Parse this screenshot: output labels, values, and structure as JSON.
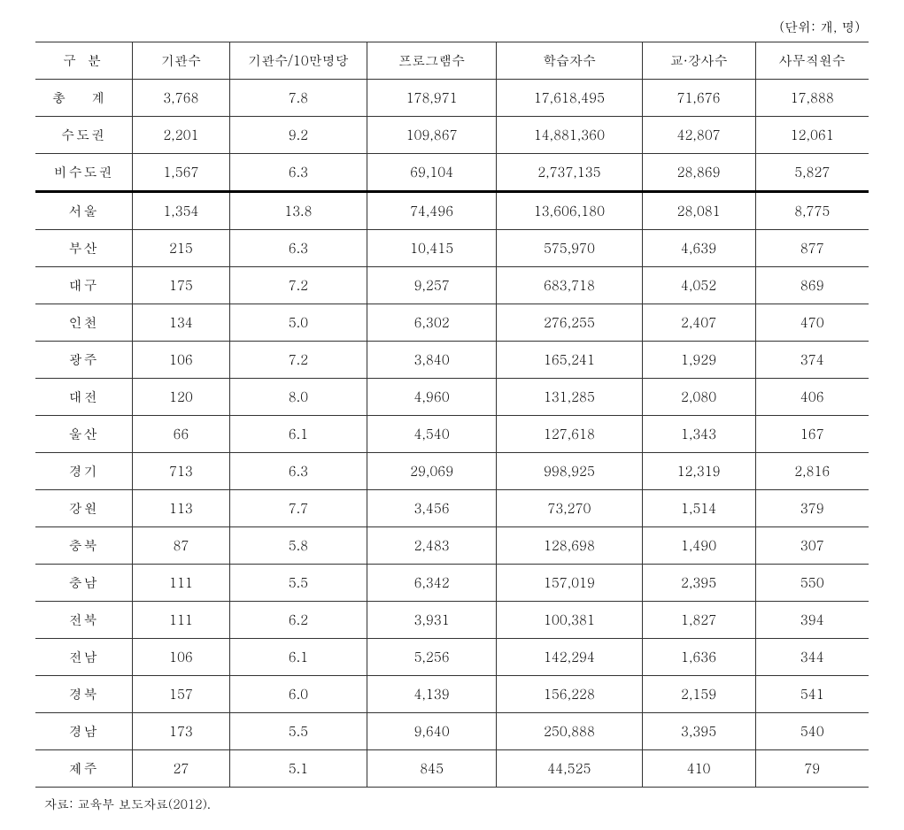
{
  "unit_label": "(단위: 개, 명)",
  "table": {
    "columns": [
      "구  분",
      "기관수",
      "기관수/10만명당",
      "프로그램수",
      "학습자수",
      "교·강사수",
      "사무직원수"
    ],
    "summary_rows": [
      {
        "label": "총  계",
        "wide": true,
        "values": [
          "3,768",
          "7.8",
          "178,971",
          "17,618,495",
          "71,676",
          "17,888"
        ]
      },
      {
        "label": "수도권",
        "wide": false,
        "values": [
          "2,201",
          "9.2",
          "109,867",
          "14,881,360",
          "42,807",
          "12,061"
        ]
      },
      {
        "label": "비수도권",
        "wide": false,
        "values": [
          "1,567",
          "6.3",
          "69,104",
          "2,737,135",
          "28,869",
          "5,827"
        ]
      }
    ],
    "region_rows": [
      {
        "label": "서울",
        "values": [
          "1,354",
          "13.8",
          "74,496",
          "13,606,180",
          "28,081",
          "8,775"
        ]
      },
      {
        "label": "부산",
        "values": [
          "215",
          "6.3",
          "10,415",
          "575,970",
          "4,639",
          "877"
        ]
      },
      {
        "label": "대구",
        "values": [
          "175",
          "7.2",
          "9,257",
          "683,718",
          "4,052",
          "869"
        ]
      },
      {
        "label": "인천",
        "values": [
          "134",
          "5.0",
          "6,302",
          "276,255",
          "2,407",
          "470"
        ]
      },
      {
        "label": "광주",
        "values": [
          "106",
          "7.2",
          "3,840",
          "165,241",
          "1,929",
          "374"
        ]
      },
      {
        "label": "대전",
        "values": [
          "120",
          "8.0",
          "4,960",
          "131,285",
          "2,080",
          "406"
        ]
      },
      {
        "label": "울산",
        "values": [
          "66",
          "6.1",
          "4,540",
          "127,618",
          "1,343",
          "167"
        ]
      },
      {
        "label": "경기",
        "values": [
          "713",
          "6.3",
          "29,069",
          "998,925",
          "12,319",
          "2,816"
        ]
      },
      {
        "label": "강원",
        "values": [
          "113",
          "7.7",
          "3,456",
          "73,270",
          "1,514",
          "379"
        ]
      },
      {
        "label": "충북",
        "values": [
          "87",
          "5.8",
          "2,483",
          "128,698",
          "1,490",
          "307"
        ]
      },
      {
        "label": "충남",
        "values": [
          "111",
          "5.5",
          "6,342",
          "157,019",
          "2,395",
          "550"
        ]
      },
      {
        "label": "전북",
        "values": [
          "111",
          "6.2",
          "3,931",
          "100,381",
          "1,827",
          "394"
        ]
      },
      {
        "label": "전남",
        "values": [
          "106",
          "6.1",
          "5,256",
          "142,294",
          "1,636",
          "344"
        ]
      },
      {
        "label": "경북",
        "values": [
          "157",
          "6.0",
          "4,139",
          "156,228",
          "2,159",
          "541"
        ]
      },
      {
        "label": "경남",
        "values": [
          "173",
          "5.5",
          "9,640",
          "250,888",
          "3,395",
          "540"
        ]
      },
      {
        "label": "제주",
        "values": [
          "27",
          "5.1",
          "845",
          "44,525",
          "410",
          "79"
        ]
      }
    ]
  },
  "source": "자료: 교육부 보도자료(2012)."
}
